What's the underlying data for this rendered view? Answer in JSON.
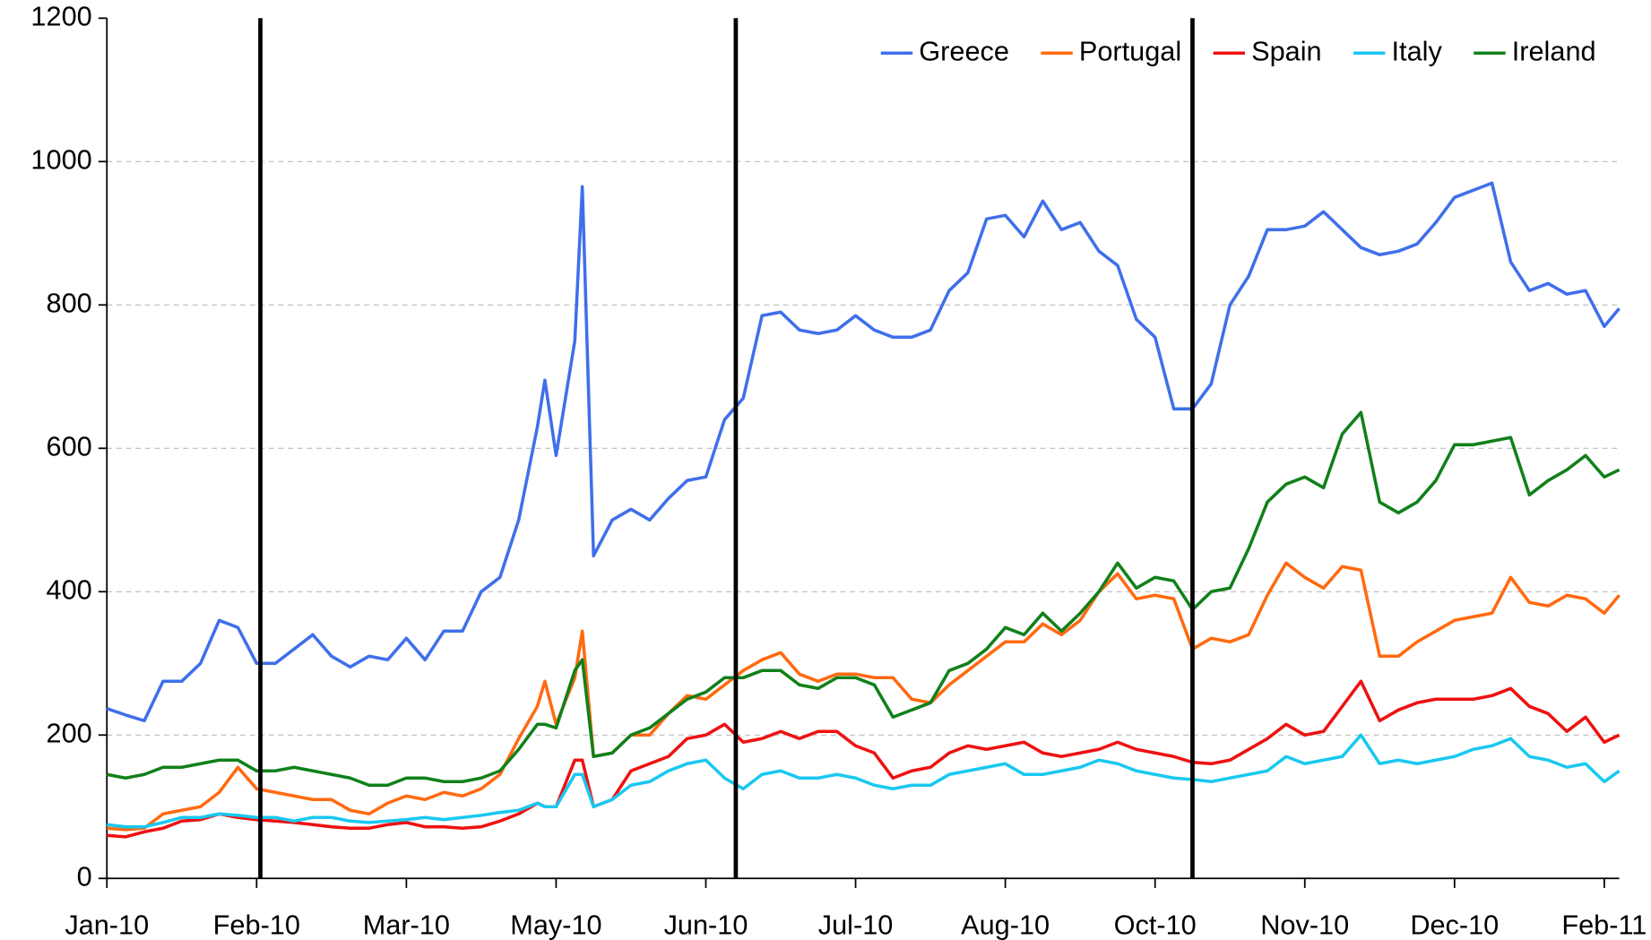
{
  "chart_data": {
    "type": "line",
    "x": [
      0,
      5,
      10,
      15,
      20,
      25,
      30,
      35,
      40,
      45,
      50,
      55,
      60,
      65,
      70,
      75,
      80,
      85,
      90,
      95,
      100,
      105,
      110,
      115,
      117,
      120,
      125,
      127,
      130,
      135,
      140,
      145,
      150,
      155,
      160,
      165,
      170,
      175,
      180,
      185,
      190,
      195,
      200,
      205,
      210,
      215,
      220,
      225,
      230,
      235,
      240,
      245,
      250,
      255,
      260,
      265,
      270,
      275,
      280,
      285,
      290,
      295,
      300,
      305,
      310,
      315,
      320,
      325,
      330,
      335,
      340,
      345,
      350,
      355,
      360,
      365,
      370,
      375,
      380,
      385,
      390,
      395,
      400,
      404
    ],
    "series": [
      {
        "name": "Greece",
        "color": "#3f6fea",
        "values": [
          237,
          228,
          220,
          275,
          275,
          300,
          360,
          350,
          300,
          300,
          320,
          340,
          310,
          295,
          310,
          305,
          335,
          305,
          345,
          345,
          400,
          420,
          500,
          630,
          695,
          590,
          750,
          965,
          450,
          500,
          515,
          500,
          530,
          555,
          560,
          640,
          670,
          785,
          790,
          765,
          760,
          765,
          785,
          765,
          755,
          755,
          765,
          820,
          845,
          920,
          925,
          895,
          945,
          905,
          915,
          875,
          855,
          780,
          755,
          655,
          655,
          690,
          800,
          840,
          905,
          905,
          910,
          930,
          905,
          880,
          870,
          875,
          885,
          915,
          950,
          960,
          970,
          860,
          820,
          830,
          815,
          820,
          770,
          795
        ]
      },
      {
        "name": "Portugal",
        "color": "#ff6a10",
        "values": [
          70,
          68,
          70,
          90,
          95,
          100,
          120,
          155,
          125,
          120,
          115,
          110,
          110,
          95,
          90,
          105,
          115,
          110,
          120,
          115,
          125,
          145,
          195,
          240,
          275,
          215,
          280,
          345,
          170,
          175,
          200,
          200,
          230,
          255,
          250,
          270,
          290,
          305,
          315,
          285,
          275,
          285,
          285,
          280,
          280,
          250,
          245,
          270,
          290,
          310,
          330,
          330,
          355,
          340,
          360,
          400,
          425,
          390,
          395,
          390,
          320,
          335,
          330,
          340,
          395,
          440,
          420,
          405,
          435,
          430,
          310,
          310,
          330,
          345,
          360,
          365,
          370,
          420,
          385,
          380,
          395,
          390,
          370,
          395
        ]
      },
      {
        "name": "Spain",
        "color": "#ee1111",
        "values": [
          60,
          58,
          65,
          70,
          80,
          82,
          90,
          85,
          82,
          80,
          78,
          75,
          72,
          70,
          70,
          75,
          78,
          72,
          72,
          70,
          72,
          80,
          90,
          105,
          100,
          100,
          165,
          165,
          100,
          110,
          150,
          160,
          170,
          195,
          200,
          215,
          190,
          195,
          205,
          195,
          205,
          205,
          185,
          175,
          140,
          150,
          155,
          175,
          185,
          180,
          185,
          190,
          175,
          170,
          175,
          180,
          190,
          180,
          175,
          170,
          162,
          160,
          165,
          180,
          195,
          215,
          200,
          205,
          240,
          275,
          220,
          235,
          245,
          250,
          250,
          250,
          255,
          265,
          240,
          230,
          205,
          225,
          190,
          200
        ]
      },
      {
        "name": "Italy",
        "color": "#19c8f0",
        "values": [
          75,
          72,
          72,
          78,
          85,
          85,
          90,
          88,
          85,
          85,
          80,
          85,
          85,
          80,
          78,
          80,
          82,
          85,
          82,
          85,
          88,
          92,
          95,
          105,
          100,
          100,
          145,
          145,
          100,
          110,
          130,
          135,
          150,
          160,
          165,
          140,
          125,
          145,
          150,
          140,
          140,
          145,
          140,
          130,
          125,
          130,
          130,
          145,
          150,
          155,
          160,
          145,
          145,
          150,
          155,
          165,
          160,
          150,
          145,
          140,
          138,
          135,
          140,
          145,
          150,
          170,
          160,
          165,
          170,
          200,
          160,
          165,
          160,
          165,
          170,
          180,
          185,
          195,
          170,
          165,
          155,
          160,
          135,
          150
        ]
      },
      {
        "name": "Ireland",
        "color": "#11801a",
        "values": [
          145,
          140,
          145,
          155,
          155,
          160,
          165,
          165,
          150,
          150,
          155,
          150,
          145,
          140,
          130,
          130,
          140,
          140,
          135,
          135,
          140,
          150,
          180,
          215,
          215,
          210,
          290,
          305,
          170,
          175,
          200,
          210,
          230,
          250,
          260,
          280,
          280,
          290,
          290,
          270,
          265,
          280,
          280,
          270,
          225,
          235,
          245,
          290,
          300,
          320,
          350,
          340,
          370,
          345,
          370,
          400,
          440,
          405,
          420,
          415,
          375,
          400,
          405,
          460,
          525,
          550,
          560,
          545,
          620,
          650,
          525,
          510,
          525,
          555,
          605,
          605,
          610,
          615,
          535,
          555,
          570,
          590,
          560,
          570
        ]
      }
    ],
    "xlim": [
      0,
      404
    ],
    "xticks": [
      {
        "value": 0,
        "label": "Jan-10"
      },
      {
        "value": 40,
        "label": "Feb-10"
      },
      {
        "value": 80,
        "label": "Mar-10"
      },
      {
        "value": 120,
        "label": "May-10"
      },
      {
        "value": 160,
        "label": "Jun-10"
      },
      {
        "value": 200,
        "label": "Jul-10"
      },
      {
        "value": 240,
        "label": "Aug-10"
      },
      {
        "value": 280,
        "label": "Oct-10"
      },
      {
        "value": 320,
        "label": "Nov-10"
      },
      {
        "value": 360,
        "label": "Dec-10"
      },
      {
        "value": 400,
        "label": "Feb-11"
      }
    ],
    "ylim": [
      0,
      1200
    ],
    "yticks": [
      0,
      200,
      400,
      600,
      800,
      1000,
      1200
    ],
    "vlines": [
      41,
      168,
      290
    ],
    "grid": true,
    "legend": "top-right"
  }
}
